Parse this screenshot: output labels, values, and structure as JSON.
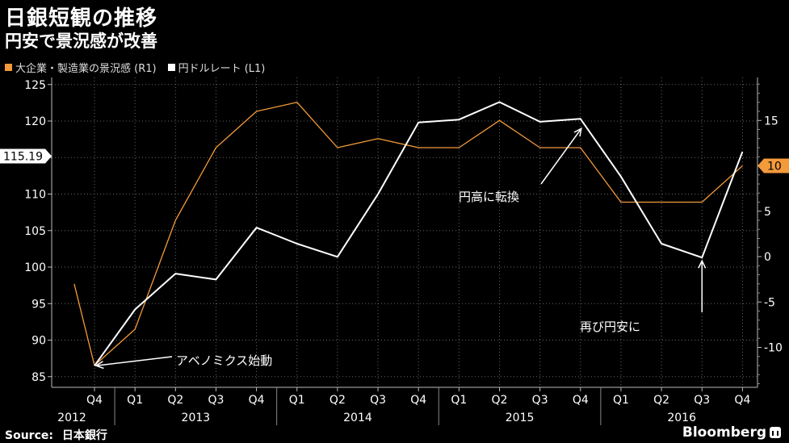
{
  "title": "日銀短観の推移",
  "subtitle": "円安で景況感が改善",
  "legend": [
    {
      "label": "大企業・製造業の景況感 (R1)",
      "color": "#F39A3A"
    },
    {
      "label": "円ドルレート (L1)",
      "color": "#FFFFFF"
    }
  ],
  "source_label": "Source:",
  "source_value": "日本銀行",
  "brand": "Bloomberg",
  "chart_data": {
    "type": "line",
    "x_quarter_labels": [
      "Q4",
      "Q1",
      "Q2",
      "Q3",
      "Q4",
      "Q1",
      "Q2",
      "Q3",
      "Q4",
      "Q1",
      "Q2",
      "Q3",
      "Q4",
      "Q1",
      "Q2",
      "Q3",
      "Q4"
    ],
    "x_year_labels": [
      "2012",
      "2013",
      "2014",
      "2015",
      "2016"
    ],
    "y_left": {
      "ticks": [
        85,
        90,
        95,
        100,
        105,
        110,
        115,
        120,
        125
      ],
      "range": [
        84,
        126
      ]
    },
    "y_right": {
      "ticks": [
        -10,
        -5,
        0,
        5,
        10,
        15
      ],
      "range": [
        -14,
        20
      ]
    },
    "series": [
      {
        "name": "大企業・製造業の景況感 (R1)",
        "axis": "right",
        "color": "#F39A3A",
        "x": [
          -0.5,
          0,
          1,
          2,
          3,
          4,
          5,
          6,
          7,
          8,
          9,
          10,
          11,
          12,
          13,
          14,
          15,
          16
        ],
        "values": [
          -3,
          -12,
          -8,
          4,
          12,
          16,
          17,
          12,
          13,
          12,
          12,
          15,
          12,
          12,
          6,
          6,
          6,
          10
        ]
      },
      {
        "name": "円ドルレート (L1)",
        "axis": "left",
        "color": "#FFFFFF",
        "x": [
          0,
          1,
          2,
          3,
          4,
          5,
          6,
          7,
          8,
          9,
          10,
          11,
          12,
          13,
          14,
          15,
          16
        ],
        "values": [
          86.5,
          94.2,
          99.1,
          98.3,
          105.4,
          103.2,
          101.4,
          110.0,
          119.8,
          120.2,
          122.6,
          119.9,
          120.3,
          112.4,
          103.2,
          101.3,
          115.8
        ]
      }
    ],
    "last_value_left": "115.19",
    "last_value_right": "10",
    "annotations": [
      {
        "text": "アベノミクス始動"
      },
      {
        "text": "円高に転換"
      },
      {
        "text": "再び円安に"
      }
    ]
  }
}
